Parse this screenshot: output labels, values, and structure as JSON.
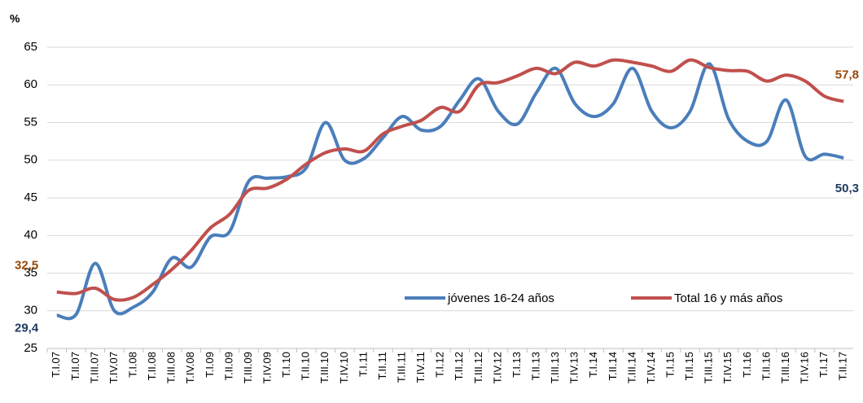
{
  "chart_data": {
    "type": "line",
    "y_label": "%",
    "categories": [
      "T.I.07",
      "T.II.07",
      "T.III.07",
      "T.IV.07",
      "T.I.08",
      "T.II.08",
      "T.III.08",
      "T.IV.08",
      "T.I.09",
      "T.II.09",
      "T.III.09",
      "T.IV.09",
      "T.I.10",
      "T.II.10",
      "T.III.10",
      "T.IV.10",
      "T.I.11",
      "T.II.11",
      "T.III.11",
      "T.IV.11",
      "T.I.12",
      "T.II.12",
      "T.III.12",
      "T.IV.12",
      "T.I.13",
      "T.II.13",
      "T.III.13",
      "T.IV.13",
      "T.I.14",
      "T.II.14",
      "T.III.14",
      "T.IV.14",
      "T.I.15",
      "T.II.15",
      "T.III.15",
      "T.IV.15",
      "T.I.16",
      "T.II.16",
      "T.III.16",
      "T.IV.16",
      "T.I.17",
      "T.II.17"
    ],
    "series": [
      {
        "name": "jóvenes 16-24 años",
        "color": "#4a7ebb",
        "values": [
          29.4,
          29.5,
          36.3,
          30.0,
          30.5,
          32.5,
          37.0,
          35.8,
          39.8,
          40.5,
          47.2,
          47.6,
          47.8,
          49.0,
          55.0,
          50.0,
          50.2,
          53.0,
          55.8,
          54.0,
          54.5,
          58.0,
          60.8,
          56.5,
          54.8,
          59.0,
          62.2,
          57.5,
          55.8,
          57.5,
          62.2,
          56.5,
          54.3,
          56.5,
          62.8,
          55.5,
          52.5,
          52.5,
          58.0,
          50.5,
          50.8,
          50.3
        ],
        "value_labels": [
          "29,4",
          null,
          null,
          null,
          null,
          null,
          null,
          null,
          null,
          null,
          null,
          null,
          null,
          null,
          null,
          null,
          null,
          null,
          null,
          null,
          null,
          null,
          null,
          null,
          null,
          null,
          null,
          null,
          null,
          null,
          null,
          null,
          null,
          null,
          null,
          null,
          null,
          null,
          null,
          null,
          null,
          "50,3"
        ]
      },
      {
        "name": "Total 16 y más años",
        "color": "#c0504d",
        "values": [
          32.5,
          32.3,
          33.0,
          31.5,
          31.8,
          33.5,
          35.5,
          38.0,
          41.0,
          42.8,
          46.0,
          46.3,
          47.5,
          49.5,
          51.0,
          51.5,
          51.2,
          53.5,
          54.5,
          55.3,
          57.0,
          56.5,
          60.0,
          60.3,
          61.2,
          62.2,
          61.5,
          63.0,
          62.5,
          63.3,
          63.0,
          62.5,
          61.8,
          63.3,
          62.3,
          61.9,
          61.8,
          60.5,
          61.3,
          60.5,
          58.5,
          57.8
        ],
        "value_labels": [
          "32,5",
          null,
          null,
          null,
          null,
          null,
          null,
          null,
          null,
          null,
          null,
          null,
          null,
          null,
          null,
          null,
          null,
          null,
          null,
          null,
          null,
          null,
          null,
          null,
          null,
          null,
          null,
          null,
          null,
          null,
          null,
          null,
          null,
          null,
          null,
          null,
          null,
          null,
          null,
          null,
          null,
          "57,8"
        ]
      }
    ],
    "ylim": [
      25,
      65
    ],
    "yticks": [
      25,
      30,
      35,
      40,
      45,
      50,
      55,
      60,
      65
    ],
    "grid": true
  }
}
